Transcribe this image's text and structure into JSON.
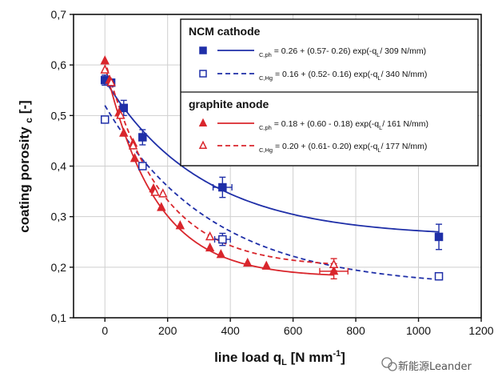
{
  "chart_data": {
    "type": "scatter",
    "xlabel": "line load q",
    "xlabel_sub": "L",
    "xlabel_unit_pre": " [N mm",
    "xlabel_unit_sup": "-1",
    "xlabel_unit_post": "]",
    "ylabel_pre": "coating porosity ",
    "ylabel_sub": "c",
    "ylabel_post": " [-]",
    "xlim": [
      -100,
      1200
    ],
    "ylim": [
      0.1,
      0.7
    ],
    "xticks": [
      0,
      200,
      400,
      600,
      800,
      1000,
      1200
    ],
    "yticks": [
      0.1,
      0.2,
      0.3,
      0.4,
      0.5,
      0.6,
      0.7
    ],
    "ytick_labels": [
      "0,1",
      "0,2",
      "0,3",
      "0,4",
      "0,5",
      "0,6",
      "0,7"
    ],
    "grid": true,
    "legend_position": "top-right",
    "legend_groups": [
      {
        "heading": "NCM cathode",
        "series": [
          0,
          1
        ]
      },
      {
        "heading": "graphite anode",
        "series": [
          2,
          3
        ]
      }
    ],
    "series": [
      {
        "color": "#1f2fa8",
        "marker": "square",
        "filled": true,
        "line": "solid",
        "legend_pre": "",
        "legend_sub": "C,ph",
        "legend_eq": " = 0.26 + (0.57- 0.26) exp(-q",
        "legend_eq_sub": "L",
        "legend_eq_end": "/ 309 N/mm)",
        "fit": {
          "a": 0.26,
          "b": 0.57,
          "c": 309
        },
        "points": [
          {
            "x": 0,
            "y": 0.57,
            "yerr": 0.01
          },
          {
            "x": 20,
            "y": 0.565
          },
          {
            "x": 60,
            "y": 0.515,
            "yerr": 0.015
          },
          {
            "x": 120,
            "y": 0.457,
            "yerr": 0.015
          },
          {
            "x": 375,
            "y": 0.358,
            "yerr": 0.02,
            "xerr": 30
          },
          {
            "x": 1065,
            "y": 0.26,
            "yerr": 0.025
          }
        ]
      },
      {
        "color": "#1f2fa8",
        "marker": "square",
        "filled": false,
        "line": "dashed",
        "legend_pre": "",
        "legend_sub": "C,Hg",
        "legend_eq": " = 0.16 + (0.52- 0.16) exp(-q",
        "legend_eq_sub": "L",
        "legend_eq_end": "/ 340 N/mm)",
        "fit": {
          "a": 0.16,
          "b": 0.52,
          "c": 340
        },
        "points": [
          {
            "x": 0,
            "y": 0.492
          },
          {
            "x": 120,
            "y": 0.4
          },
          {
            "x": 375,
            "y": 0.255,
            "yerr": 0.012,
            "xerr": 25
          },
          {
            "x": 1065,
            "y": 0.182
          }
        ]
      },
      {
        "color": "#d9262c",
        "marker": "triangle",
        "filled": true,
        "line": "solid",
        "legend_pre": "",
        "legend_sub": "C,ph",
        "legend_eq": " = 0.18 + (0.60 - 0.18) exp(-q",
        "legend_eq_sub": "L",
        "legend_eq_end": "/ 161 N/mm)",
        "fit": {
          "a": 0.18,
          "b": 0.6,
          "c": 161
        },
        "points": [
          {
            "x": 0,
            "y": 0.608
          },
          {
            "x": 15,
            "y": 0.57
          },
          {
            "x": 45,
            "y": 0.505
          },
          {
            "x": 60,
            "y": 0.465
          },
          {
            "x": 90,
            "y": 0.445
          },
          {
            "x": 95,
            "y": 0.415
          },
          {
            "x": 155,
            "y": 0.355
          },
          {
            "x": 180,
            "y": 0.318
          },
          {
            "x": 240,
            "y": 0.282
          },
          {
            "x": 335,
            "y": 0.238
          },
          {
            "x": 370,
            "y": 0.225
          },
          {
            "x": 455,
            "y": 0.208
          },
          {
            "x": 515,
            "y": 0.202
          },
          {
            "x": 730,
            "y": 0.192,
            "yerr": 0.015,
            "xerr": 45
          }
        ]
      },
      {
        "color": "#d9262c",
        "marker": "triangle",
        "filled": false,
        "line": "dashed",
        "legend_pre": "",
        "legend_sub": "C,Hg",
        "legend_eq": " = 0.20 + (0.61- 0.20) exp(-q",
        "legend_eq_sub": "L",
        "legend_eq_end": "/ 177 N/mm)",
        "fit": {
          "a": 0.2,
          "b": 0.61,
          "c": 177
        },
        "points": [
          {
            "x": 0,
            "y": 0.59
          },
          {
            "x": 20,
            "y": 0.565
          },
          {
            "x": 50,
            "y": 0.5
          },
          {
            "x": 90,
            "y": 0.44
          },
          {
            "x": 160,
            "y": 0.348
          },
          {
            "x": 185,
            "y": 0.345
          },
          {
            "x": 335,
            "y": 0.26
          },
          {
            "x": 730,
            "y": 0.205,
            "yerr": 0.012
          }
        ]
      }
    ]
  },
  "watermark": {
    "icon": "wechat-logo-icon",
    "text": "新能源Leander"
  }
}
